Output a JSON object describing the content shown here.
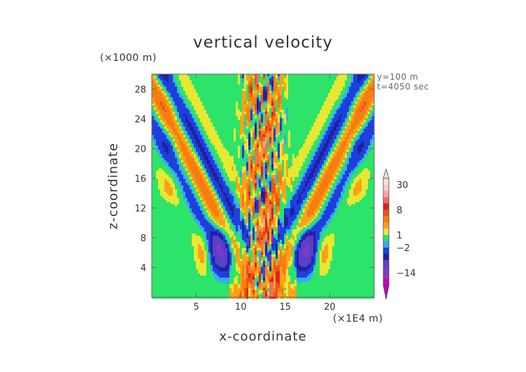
{
  "chart_data": {
    "type": "heatmap",
    "title": "vertical velocity",
    "xlabel": "x-coordinate",
    "ylabel": "z-coordinate",
    "x_unit": "(×1E4 m)",
    "z_unit": "(×1000 m)",
    "xlim": [
      0,
      25
    ],
    "ylim": [
      0,
      30
    ],
    "x_ticks": [
      5,
      10,
      15,
      20
    ],
    "y_ticks": [
      4,
      8,
      12,
      16,
      20,
      24,
      28
    ],
    "annotations": [
      "y=100 m",
      "t=4050 sec"
    ],
    "colorbar": {
      "labels": [
        {
          "text": "30",
          "value": 30
        },
        {
          "text": "8",
          "value": 8
        },
        {
          "text": "1",
          "value": 1
        },
        {
          "text": "−2",
          "value": -2
        },
        {
          "text": "−14",
          "value": -14
        }
      ],
      "levels": [
        -20,
        -14,
        -10,
        -6,
        -4,
        -2,
        -1,
        1,
        2,
        4,
        6,
        8,
        10,
        14,
        20,
        30
      ],
      "colors": [
        "#c000c0",
        "#9a2fc8",
        "#7a3cc8",
        "#5a3fc8",
        "#2020a0",
        "#1f3fdc",
        "#36a9f6",
        "#2ce46a",
        "#e8e832",
        "#f8a21a",
        "#f77d10",
        "#f05214",
        "#e02020",
        "#f46a6a",
        "#f8a5a5",
        "#f8cccc",
        "#fae0e0"
      ]
    }
  }
}
